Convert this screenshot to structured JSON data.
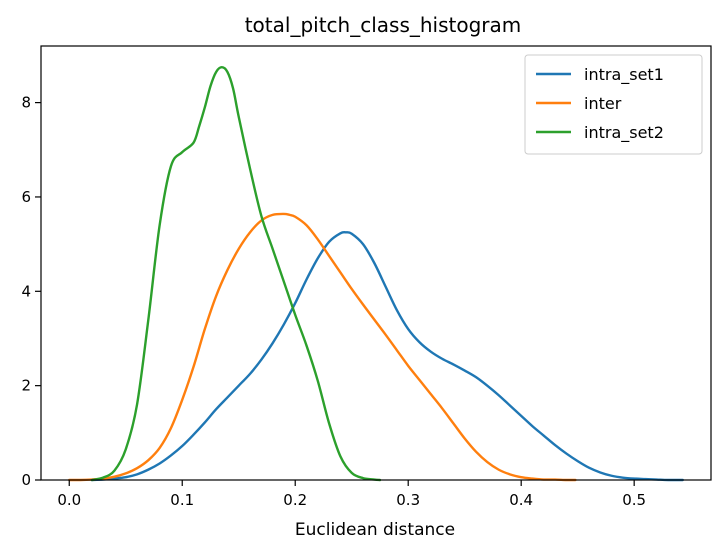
{
  "chart_data": {
    "type": "line",
    "title": "total_pitch_class_histogram",
    "xlabel": "Euclidean distance",
    "ylabel": "",
    "xlim": [
      -0.025,
      0.568
    ],
    "ylim": [
      0,
      9.2
    ],
    "x_ticks": [
      0.0,
      0.1,
      0.2,
      0.3,
      0.4,
      0.5
    ],
    "x_tick_labels": [
      "0.0",
      "0.1",
      "0.2",
      "0.3",
      "0.4",
      "0.5"
    ],
    "y_ticks": [
      0,
      2,
      4,
      6,
      8
    ],
    "y_tick_labels": [
      "0",
      "2",
      "4",
      "6",
      "8"
    ],
    "grid": false,
    "legend_position": "top-right",
    "series": [
      {
        "name": "intra_set1",
        "color": "#1f77b4",
        "x": [
          0.02,
          0.03,
          0.04,
          0.05,
          0.06,
          0.07,
          0.08,
          0.09,
          0.1,
          0.11,
          0.12,
          0.13,
          0.14,
          0.15,
          0.16,
          0.17,
          0.18,
          0.19,
          0.2,
          0.21,
          0.22,
          0.23,
          0.24,
          0.245,
          0.25,
          0.26,
          0.27,
          0.28,
          0.29,
          0.3,
          0.31,
          0.32,
          0.33,
          0.34,
          0.35,
          0.36,
          0.37,
          0.38,
          0.39,
          0.4,
          0.41,
          0.42,
          0.43,
          0.44,
          0.45,
          0.46,
          0.47,
          0.48,
          0.49,
          0.5,
          0.51,
          0.52,
          0.53,
          0.543
        ],
        "y": [
          0.0,
          0.01,
          0.03,
          0.06,
          0.12,
          0.22,
          0.35,
          0.52,
          0.72,
          0.96,
          1.22,
          1.5,
          1.75,
          2.0,
          2.25,
          2.55,
          2.9,
          3.3,
          3.75,
          4.25,
          4.7,
          5.05,
          5.23,
          5.25,
          5.22,
          5.0,
          4.6,
          4.1,
          3.6,
          3.2,
          2.92,
          2.72,
          2.57,
          2.45,
          2.32,
          2.18,
          2.0,
          1.8,
          1.58,
          1.36,
          1.14,
          0.94,
          0.74,
          0.56,
          0.4,
          0.26,
          0.16,
          0.09,
          0.05,
          0.03,
          0.02,
          0.01,
          0.0,
          0.0
        ]
      },
      {
        "name": "inter",
        "color": "#ff7f0e",
        "x": [
          0.0,
          0.01,
          0.02,
          0.03,
          0.04,
          0.05,
          0.06,
          0.07,
          0.08,
          0.09,
          0.1,
          0.11,
          0.12,
          0.13,
          0.14,
          0.15,
          0.16,
          0.17,
          0.18,
          0.19,
          0.195,
          0.2,
          0.21,
          0.22,
          0.23,
          0.24,
          0.25,
          0.26,
          0.27,
          0.28,
          0.29,
          0.3,
          0.31,
          0.32,
          0.33,
          0.34,
          0.35,
          0.36,
          0.37,
          0.38,
          0.39,
          0.4,
          0.41,
          0.42,
          0.43,
          0.44,
          0.448
        ],
        "y": [
          0.0,
          0.0,
          0.01,
          0.03,
          0.07,
          0.14,
          0.25,
          0.42,
          0.68,
          1.1,
          1.7,
          2.4,
          3.2,
          3.9,
          4.45,
          4.9,
          5.25,
          5.5,
          5.62,
          5.64,
          5.62,
          5.58,
          5.4,
          5.1,
          4.75,
          4.4,
          4.05,
          3.72,
          3.4,
          3.08,
          2.75,
          2.42,
          2.12,
          1.82,
          1.52,
          1.2,
          0.88,
          0.6,
          0.38,
          0.22,
          0.12,
          0.06,
          0.03,
          0.01,
          0.01,
          0.0,
          0.0
        ]
      },
      {
        "name": "intra_set2",
        "color": "#2ca02c",
        "x": [
          0.02,
          0.03,
          0.04,
          0.05,
          0.06,
          0.07,
          0.08,
          0.09,
          0.1,
          0.11,
          0.115,
          0.12,
          0.125,
          0.13,
          0.135,
          0.14,
          0.145,
          0.15,
          0.16,
          0.17,
          0.18,
          0.19,
          0.2,
          0.21,
          0.22,
          0.23,
          0.24,
          0.25,
          0.26,
          0.27,
          0.275
        ],
        "y": [
          0.0,
          0.05,
          0.2,
          0.65,
          1.6,
          3.4,
          5.4,
          6.65,
          6.95,
          7.15,
          7.5,
          7.9,
          8.35,
          8.65,
          8.75,
          8.65,
          8.3,
          7.7,
          6.6,
          5.6,
          4.9,
          4.2,
          3.5,
          2.85,
          2.1,
          1.2,
          0.5,
          0.15,
          0.04,
          0.01,
          0.0
        ]
      }
    ]
  }
}
